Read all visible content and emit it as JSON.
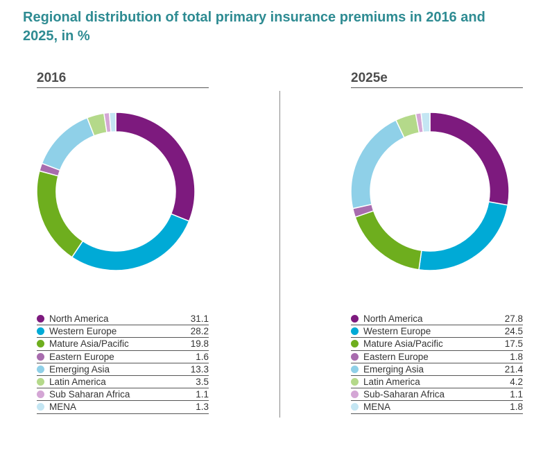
{
  "title": "Regional distribution of total primary insurance premiums in 2016 and 2025, in %",
  "colors": {
    "North America": "#7d1a7e",
    "Western Europe": "#00aad6",
    "Mature Asia/Pacific": "#6eae1e",
    "Eastern Europe": "#a86cae",
    "Emerging Asia": "#8fd0e8",
    "Latin America": "#b4d98a",
    "Sub Saharan Africa": "#d4a6d5",
    "MENA": "#c4e6f3"
  },
  "chart_data": [
    {
      "type": "pie",
      "title": "2016",
      "categories": [
        "North America",
        "Western Europe",
        "Mature Asia/Pacific",
        "Eastern Europe",
        "Emerging Asia",
        "Latin America",
        "Sub Saharan Africa",
        "MENA"
      ],
      "values": [
        31.1,
        28.2,
        19.8,
        1.6,
        13.3,
        3.5,
        1.1,
        1.3
      ],
      "value_labels": [
        "31.1",
        "28.2",
        "19.8",
        "1.6",
        "13.3",
        "3.5",
        "1.1",
        "1.3"
      ]
    },
    {
      "type": "pie",
      "title": "2025e",
      "categories": [
        "North America",
        "Western Europe",
        "Mature Asia/Pacific",
        "Eastern Europe",
        "Emerging Asia",
        "Latin America",
        "Sub-Saharan Africa",
        "MENA"
      ],
      "values": [
        27.8,
        24.5,
        17.5,
        1.8,
        21.4,
        4.2,
        1.1,
        1.8
      ],
      "value_labels": [
        "27.8",
        "24.5",
        "17.5",
        "1.8",
        "21.4",
        "4.2",
        "1.1",
        "1.8"
      ]
    }
  ]
}
